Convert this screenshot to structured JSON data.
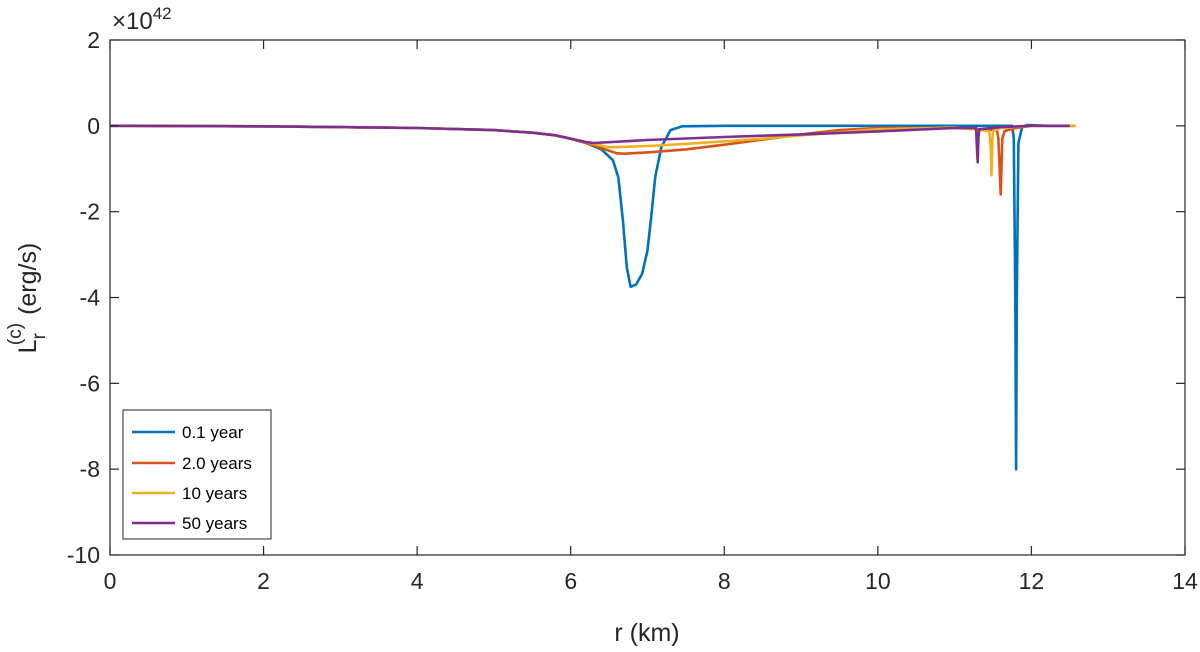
{
  "chart_data": {
    "type": "line",
    "xlabel": "r (km)",
    "ylabel": "L_r^(c) (erg/s)",
    "ylabel_parts": {
      "base": "L",
      "sub": "r",
      "sup": "(c)",
      "unit": "(erg/s)"
    },
    "y_exponent_label": {
      "prefix": "×10",
      "power": "42"
    },
    "xlim": [
      0,
      14
    ],
    "ylim": [
      -10,
      2
    ],
    "xticks": [
      "0",
      "2",
      "4",
      "6",
      "8",
      "10",
      "12",
      "14"
    ],
    "yticks": [
      "2",
      "0",
      "-2",
      "-4",
      "-6",
      "-8",
      "-10"
    ],
    "grid": false,
    "legend_position": "bottom-left",
    "series": [
      {
        "name": "0.1 year",
        "color": "#0072BD",
        "points": [
          [
            0,
            0
          ],
          [
            2,
            -0.01
          ],
          [
            4,
            -0.05
          ],
          [
            5,
            -0.1
          ],
          [
            5.5,
            -0.16
          ],
          [
            5.8,
            -0.22
          ],
          [
            6.0,
            -0.3
          ],
          [
            6.2,
            -0.4
          ],
          [
            6.4,
            -0.55
          ],
          [
            6.55,
            -0.8
          ],
          [
            6.62,
            -1.2
          ],
          [
            6.68,
            -2.2
          ],
          [
            6.73,
            -3.3
          ],
          [
            6.78,
            -3.75
          ],
          [
            6.85,
            -3.7
          ],
          [
            6.93,
            -3.45
          ],
          [
            7.0,
            -2.9
          ],
          [
            7.05,
            -2.1
          ],
          [
            7.1,
            -1.2
          ],
          [
            7.18,
            -0.5
          ],
          [
            7.3,
            -0.1
          ],
          [
            7.45,
            -0.01
          ],
          [
            8,
            0
          ],
          [
            11.75,
            0
          ],
          [
            11.77,
            -0.3
          ],
          [
            11.79,
            -4
          ],
          [
            11.8,
            -8
          ],
          [
            11.81,
            -4
          ],
          [
            11.83,
            -0.4
          ],
          [
            11.88,
            -0.02
          ],
          [
            11.95,
            0.02
          ],
          [
            12.2,
            0
          ],
          [
            12.55,
            0
          ]
        ]
      },
      {
        "name": "2.0 years",
        "color": "#D95319",
        "points": [
          [
            0,
            0
          ],
          [
            2,
            -0.01
          ],
          [
            4,
            -0.05
          ],
          [
            5,
            -0.1
          ],
          [
            5.5,
            -0.16
          ],
          [
            5.8,
            -0.22
          ],
          [
            6.0,
            -0.3
          ],
          [
            6.2,
            -0.4
          ],
          [
            6.4,
            -0.52
          ],
          [
            6.6,
            -0.64
          ],
          [
            6.7,
            -0.65
          ],
          [
            7.0,
            -0.62
          ],
          [
            7.5,
            -0.55
          ],
          [
            8.0,
            -0.44
          ],
          [
            8.5,
            -0.32
          ],
          [
            9.0,
            -0.2
          ],
          [
            9.5,
            -0.1
          ],
          [
            10.0,
            -0.05
          ],
          [
            11.0,
            -0.05
          ],
          [
            11.55,
            -0.1
          ],
          [
            11.57,
            -0.3
          ],
          [
            11.6,
            -1.6
          ],
          [
            11.62,
            -0.3
          ],
          [
            11.65,
            -0.12
          ],
          [
            11.8,
            -0.05
          ],
          [
            12.0,
            0
          ],
          [
            12.55,
            0
          ]
        ]
      },
      {
        "name": "10 years",
        "color": "#EDB120",
        "points": [
          [
            0,
            0
          ],
          [
            2,
            -0.01
          ],
          [
            4,
            -0.05
          ],
          [
            5,
            -0.1
          ],
          [
            5.5,
            -0.16
          ],
          [
            5.8,
            -0.22
          ],
          [
            6.0,
            -0.3
          ],
          [
            6.2,
            -0.38
          ],
          [
            6.4,
            -0.46
          ],
          [
            6.5,
            -0.5
          ],
          [
            7.0,
            -0.47
          ],
          [
            7.5,
            -0.42
          ],
          [
            8.0,
            -0.36
          ],
          [
            8.5,
            -0.3
          ],
          [
            9.0,
            -0.22
          ],
          [
            9.5,
            -0.15
          ],
          [
            10.0,
            -0.08
          ],
          [
            11.0,
            -0.04
          ],
          [
            11.45,
            -0.12
          ],
          [
            11.47,
            -0.5
          ],
          [
            11.48,
            -1.15
          ],
          [
            11.49,
            -0.4
          ],
          [
            11.5,
            -0.12
          ],
          [
            11.6,
            -0.05
          ],
          [
            12.0,
            0
          ],
          [
            12.58,
            0
          ]
        ]
      },
      {
        "name": "50 years",
        "color": "#7E2F8E",
        "points": [
          [
            0,
            0
          ],
          [
            2,
            -0.01
          ],
          [
            4,
            -0.05
          ],
          [
            5,
            -0.1
          ],
          [
            5.5,
            -0.16
          ],
          [
            5.8,
            -0.22
          ],
          [
            6.0,
            -0.3
          ],
          [
            6.2,
            -0.38
          ],
          [
            6.3,
            -0.4
          ],
          [
            7.0,
            -0.33
          ],
          [
            8.0,
            -0.26
          ],
          [
            9.0,
            -0.2
          ],
          [
            10.0,
            -0.13
          ],
          [
            11.0,
            -0.05
          ],
          [
            11.28,
            -0.05
          ],
          [
            11.29,
            -0.5
          ],
          [
            11.3,
            -0.85
          ],
          [
            11.31,
            -0.3
          ],
          [
            11.32,
            -0.08
          ],
          [
            11.6,
            -0.03
          ],
          [
            12.0,
            0
          ],
          [
            12.5,
            0
          ]
        ]
      }
    ]
  }
}
